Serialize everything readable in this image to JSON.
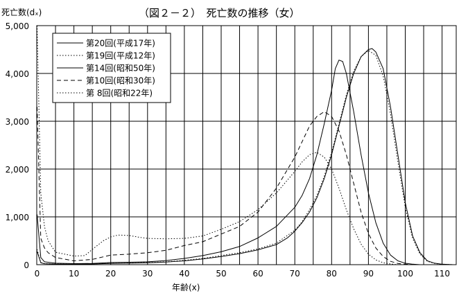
{
  "chart_data": {
    "type": "line",
    "title": "（図２－２）　死亡数の推移（女）",
    "xlabel": "年齢(x)",
    "ylabel": "死亡数(dₓ)",
    "xlim": [
      0,
      113
    ],
    "ylim": [
      0,
      5000
    ],
    "x_ticks": [
      0,
      10,
      20,
      30,
      40,
      50,
      60,
      70,
      80,
      90,
      100,
      110
    ],
    "y_ticks": [
      0,
      1000,
      2000,
      3000,
      4000,
      5000
    ],
    "y_tick_labels": [
      "0",
      "1,000",
      "2,000",
      "3,000",
      "4,000",
      "5,000"
    ],
    "grid": {
      "vertical_every": 5,
      "horizontal_every": 1000
    },
    "legend_position": "top-left",
    "series": [
      {
        "name": "第20回(平成17年)",
        "dash": "solid",
        "points": [
          [
            0,
            280
          ],
          [
            1,
            40
          ],
          [
            2,
            20
          ],
          [
            5,
            12
          ],
          [
            10,
            10
          ],
          [
            15,
            15
          ],
          [
            20,
            25
          ],
          [
            25,
            30
          ],
          [
            30,
            40
          ],
          [
            35,
            55
          ],
          [
            40,
            80
          ],
          [
            45,
            120
          ],
          [
            50,
            170
          ],
          [
            55,
            230
          ],
          [
            60,
            310
          ],
          [
            65,
            420
          ],
          [
            68,
            560
          ],
          [
            70,
            700
          ],
          [
            72,
            880
          ],
          [
            74,
            1100
          ],
          [
            76,
            1400
          ],
          [
            78,
            1800
          ],
          [
            80,
            2300
          ],
          [
            82,
            2900
          ],
          [
            84,
            3500
          ],
          [
            86,
            4000
          ],
          [
            88,
            4350
          ],
          [
            90,
            4500
          ],
          [
            91,
            4520
          ],
          [
            92,
            4450
          ],
          [
            94,
            4100
          ],
          [
            96,
            3300
          ],
          [
            98,
            2300
          ],
          [
            100,
            1300
          ],
          [
            102,
            600
          ],
          [
            104,
            250
          ],
          [
            106,
            80
          ],
          [
            108,
            30
          ],
          [
            110,
            10
          ],
          [
            113,
            0
          ]
        ]
      },
      {
        "name": "第19回(平成12年)",
        "dash": "dotted",
        "points": [
          [
            0,
            320
          ],
          [
            1,
            45
          ],
          [
            2,
            22
          ],
          [
            5,
            14
          ],
          [
            10,
            11
          ],
          [
            15,
            17
          ],
          [
            20,
            28
          ],
          [
            25,
            33
          ],
          [
            30,
            45
          ],
          [
            35,
            60
          ],
          [
            40,
            90
          ],
          [
            45,
            130
          ],
          [
            50,
            190
          ],
          [
            55,
            250
          ],
          [
            60,
            330
          ],
          [
            65,
            450
          ],
          [
            70,
            720
          ],
          [
            72,
            900
          ],
          [
            74,
            1150
          ],
          [
            76,
            1450
          ],
          [
            78,
            1850
          ],
          [
            80,
            2350
          ],
          [
            82,
            2950
          ],
          [
            84,
            3550
          ],
          [
            86,
            4050
          ],
          [
            88,
            4350
          ],
          [
            90,
            4480
          ],
          [
            92,
            4380
          ],
          [
            94,
            3950
          ],
          [
            96,
            3150
          ],
          [
            98,
            2150
          ],
          [
            100,
            1200
          ],
          [
            102,
            550
          ],
          [
            104,
            220
          ],
          [
            106,
            70
          ],
          [
            108,
            25
          ],
          [
            110,
            8
          ],
          [
            113,
            0
          ]
        ]
      },
      {
        "name": "第14回(昭和50年)",
        "dash": "solid",
        "points": [
          [
            0,
            1050
          ],
          [
            1,
            150
          ],
          [
            2,
            60
          ],
          [
            5,
            30
          ],
          [
            10,
            22
          ],
          [
            15,
            25
          ],
          [
            20,
            45
          ],
          [
            25,
            50
          ],
          [
            30,
            60
          ],
          [
            35,
            85
          ],
          [
            40,
            130
          ],
          [
            45,
            190
          ],
          [
            50,
            270
          ],
          [
            55,
            380
          ],
          [
            60,
            560
          ],
          [
            65,
            800
          ],
          [
            70,
            1200
          ],
          [
            72,
            1450
          ],
          [
            74,
            1800
          ],
          [
            76,
            2300
          ],
          [
            78,
            2950
          ],
          [
            80,
            3650
          ],
          [
            81,
            4100
          ],
          [
            82,
            4280
          ],
          [
            83,
            4250
          ],
          [
            84,
            4000
          ],
          [
            86,
            3200
          ],
          [
            88,
            2300
          ],
          [
            90,
            1500
          ],
          [
            92,
            880
          ],
          [
            94,
            450
          ],
          [
            96,
            200
          ],
          [
            98,
            80
          ],
          [
            100,
            30
          ],
          [
            102,
            10
          ],
          [
            104,
            0
          ]
        ]
      },
      {
        "name": "第10回(昭和30年)",
        "dash": "dashed",
        "points": [
          [
            0,
            3300
          ],
          [
            1,
            550
          ],
          [
            2,
            350
          ],
          [
            3,
            250
          ],
          [
            5,
            150
          ],
          [
            10,
            80
          ],
          [
            15,
            110
          ],
          [
            20,
            200
          ],
          [
            25,
            220
          ],
          [
            30,
            250
          ],
          [
            35,
            300
          ],
          [
            40,
            400
          ],
          [
            45,
            480
          ],
          [
            50,
            640
          ],
          [
            55,
            800
          ],
          [
            60,
            1100
          ],
          [
            65,
            1600
          ],
          [
            70,
            2250
          ],
          [
            74,
            2900
          ],
          [
            76,
            3100
          ],
          [
            78,
            3200
          ],
          [
            80,
            3100
          ],
          [
            82,
            2800
          ],
          [
            84,
            2300
          ],
          [
            86,
            1700
          ],
          [
            88,
            1100
          ],
          [
            90,
            650
          ],
          [
            92,
            350
          ],
          [
            94,
            170
          ],
          [
            96,
            70
          ],
          [
            98,
            25
          ],
          [
            100,
            10
          ],
          [
            102,
            0
          ]
        ]
      },
      {
        "name": "第 8回(昭和22年)",
        "dash": "dotted",
        "points": [
          [
            0,
            5000
          ],
          [
            1,
            1500
          ],
          [
            2,
            800
          ],
          [
            3,
            500
          ],
          [
            5,
            260
          ],
          [
            10,
            180
          ],
          [
            13,
            190
          ],
          [
            15,
            320
          ],
          [
            18,
            500
          ],
          [
            20,
            580
          ],
          [
            22,
            620
          ],
          [
            25,
            610
          ],
          [
            28,
            570
          ],
          [
            30,
            550
          ],
          [
            35,
            540
          ],
          [
            40,
            550
          ],
          [
            45,
            600
          ],
          [
            50,
            740
          ],
          [
            55,
            900
          ],
          [
            60,
            1150
          ],
          [
            65,
            1500
          ],
          [
            70,
            1950
          ],
          [
            72,
            2150
          ],
          [
            74,
            2300
          ],
          [
            76,
            2350
          ],
          [
            78,
            2250
          ],
          [
            80,
            2000
          ],
          [
            82,
            1600
          ],
          [
            84,
            1150
          ],
          [
            86,
            750
          ],
          [
            88,
            430
          ],
          [
            90,
            220
          ],
          [
            92,
            100
          ],
          [
            94,
            40
          ],
          [
            96,
            15
          ],
          [
            98,
            0
          ]
        ]
      }
    ]
  }
}
